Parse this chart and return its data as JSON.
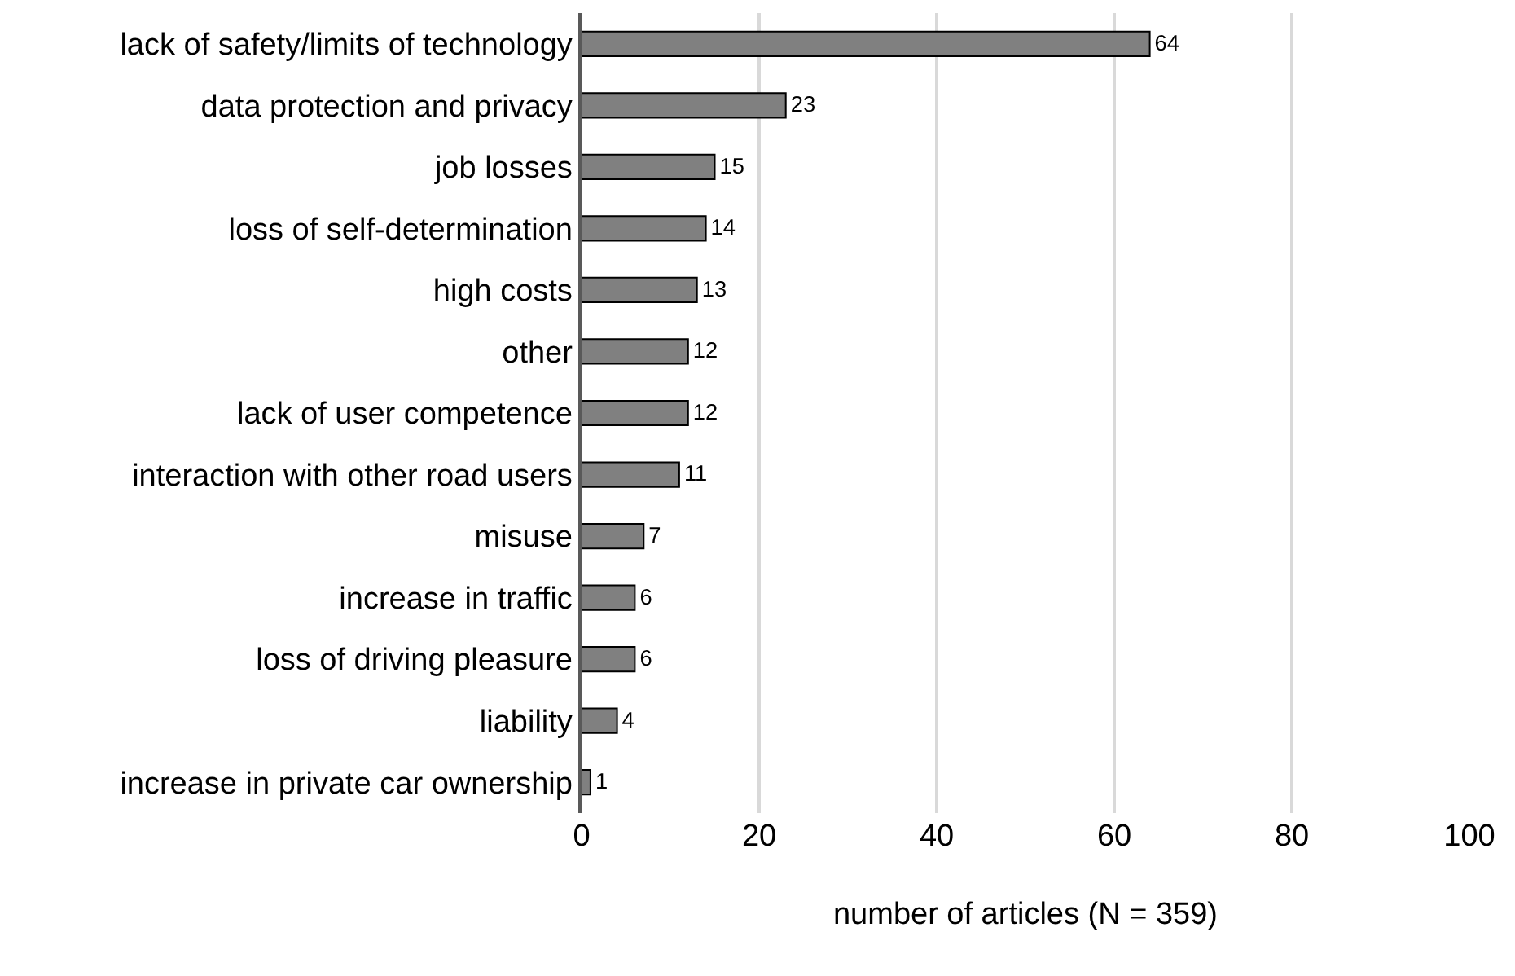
{
  "chart_data": {
    "type": "bar",
    "orientation": "horizontal",
    "xlabel": "number of articles (N = 359)",
    "categories": [
      "lack of safety/limits of technology",
      "data protection and privacy",
      "job losses",
      "loss of self-determination",
      "high costs",
      "other",
      "lack of user competence",
      "interaction with other road users",
      "misuse",
      "increase in traffic",
      "loss of driving pleasure",
      "liability",
      "increase in private car ownership"
    ],
    "values": [
      64,
      23,
      15,
      14,
      13,
      12,
      12,
      11,
      7,
      6,
      6,
      4,
      1
    ],
    "color": "#808080",
    "xlim": [
      0,
      100
    ],
    "xticks": [
      0,
      20,
      40,
      60,
      80,
      100
    ],
    "grid": "x",
    "data_labels": true
  }
}
